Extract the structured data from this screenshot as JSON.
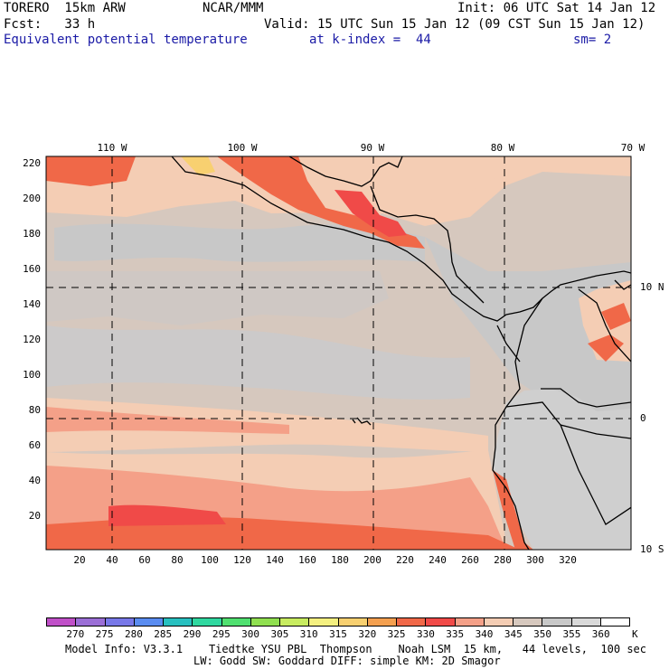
{
  "header": {
    "model": "TORERO  15km ARW",
    "center": "NCAR/MMM",
    "init": "Init: 06 UTC Sat 14 Jan 12",
    "fcst": "Fcst:   33 h",
    "valid": "Valid: 15 UTC Sun 15 Jan 12 (09 CST Sun 15 Jan 12)",
    "field": "Equivalent potential temperature",
    "level": "at k-index =  44",
    "smooth": "sm= 2"
  },
  "map": {
    "lon_labels": [
      "110 W",
      "100 W",
      "90 W",
      "80 W",
      "70 W"
    ],
    "lat_labels": [
      "10 N",
      "0",
      "10 S"
    ],
    "y_ticks": [
      "220",
      "200",
      "180",
      "160",
      "140",
      "120",
      "100",
      "80",
      "60",
      "40",
      "20"
    ],
    "x_ticks": [
      "20",
      "40",
      "60",
      "80",
      "100",
      "120",
      "140",
      "160",
      "180",
      "200",
      "220",
      "240",
      "260",
      "280",
      "300",
      "320"
    ]
  },
  "colorbar": {
    "labels": [
      "270",
      "275",
      "280",
      "285",
      "290",
      "295",
      "300",
      "305",
      "310",
      "315",
      "320",
      "325",
      "330",
      "335",
      "340",
      "345",
      "350",
      "355",
      "360"
    ],
    "unit": "K",
    "colors": [
      "#c050c8",
      "#9b6fd6",
      "#7878e8",
      "#5a8cf0",
      "#28c0c0",
      "#30d8a0",
      "#50e070",
      "#90e050",
      "#c8ec60",
      "#f4f080",
      "#f8d070",
      "#f4a050",
      "#f06848",
      "#f04a48",
      "#f4a088",
      "#f4cdb4",
      "#d6c8be",
      "#c8c8c8",
      "#d9d9d9",
      "#ffffff"
    ]
  },
  "footer": {
    "line1": "Model Info: V3.3.1    Tiedtke YSU PBL  Thompson    Noah LSM  15 km,   44 levels,  100 sec",
    "line2": "LW: Godd SW: Goddard DIFF: simple KM: 2D Smagor"
  }
}
